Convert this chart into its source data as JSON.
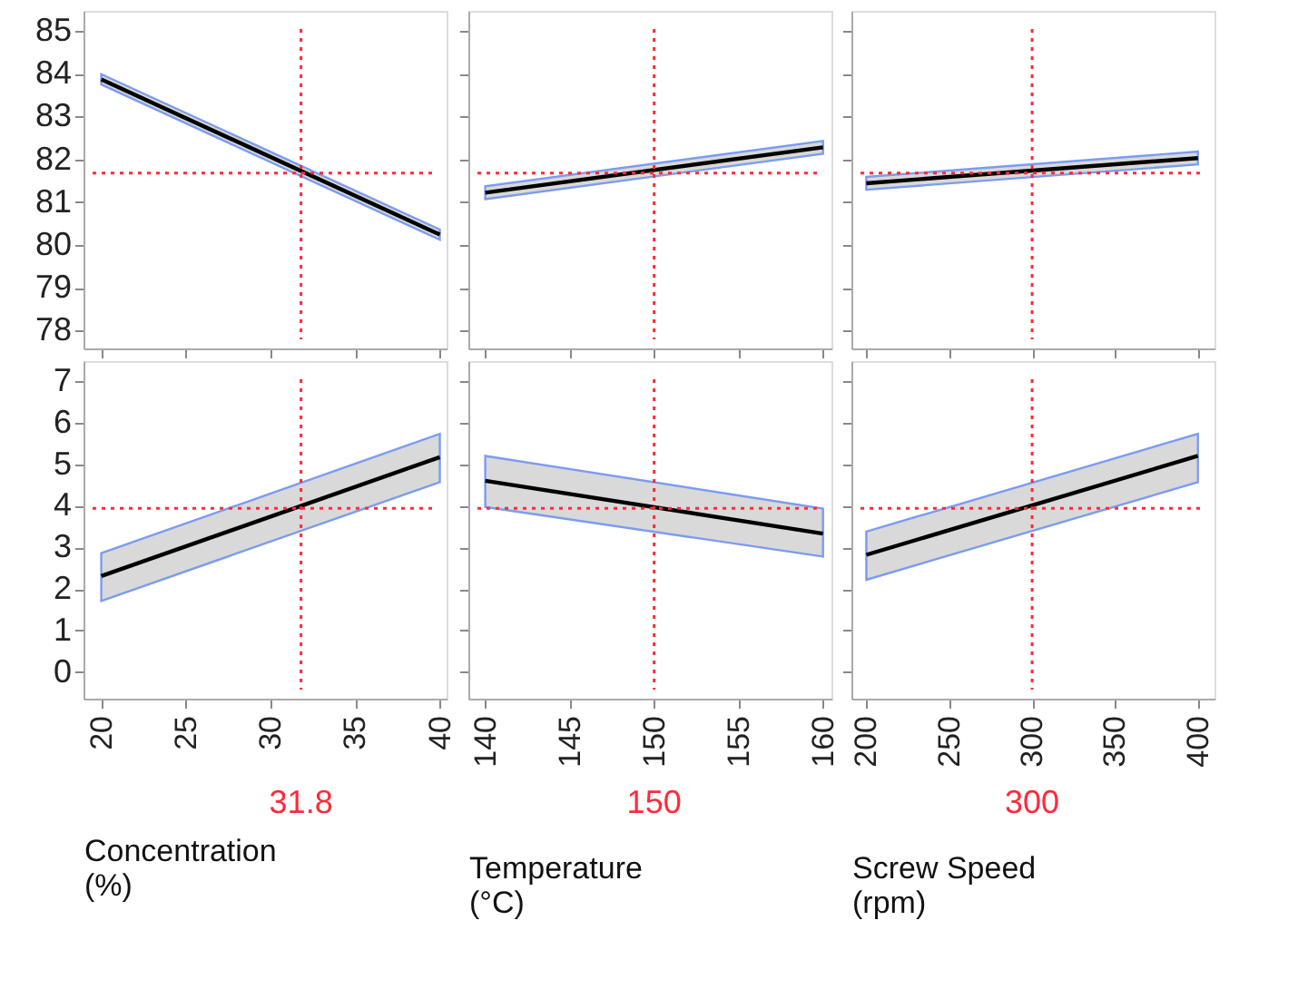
{
  "chart_data": [
    {
      "type": "line",
      "x": [
        20,
        40
      ],
      "xlim": [
        18.95,
        40.4
      ],
      "xticks": [
        20,
        25,
        30,
        35,
        40
      ],
      "ylim": [
        77.58,
        85.47
      ],
      "yticks": [
        78,
        79,
        80,
        81,
        82,
        83,
        84,
        85
      ],
      "tick_labels": "y",
      "grid": false,
      "series": [
        {
          "color": "#000000",
          "values": [
            83.87,
            80.24
          ],
          "lower": [
            83.75,
            80.12
          ],
          "upper": [
            83.99,
            80.36
          ]
        }
      ],
      "ref_lines": [
        {
          "axis": "x",
          "value": 31.8,
          "color": "#ff2a3a",
          "line_style": "dotted"
        },
        {
          "axis": "y",
          "value": 81.68,
          "color": "#ff2a3a",
          "line_style": "dotted"
        }
      ]
    },
    {
      "type": "line",
      "x": [
        140,
        160
      ],
      "xlim": [
        139,
        160.5
      ],
      "xticks": [
        140,
        145,
        150,
        155,
        160
      ],
      "ylim": [
        77.58,
        85.47
      ],
      "yticks": [
        78,
        79,
        80,
        81,
        82,
        83,
        84,
        85
      ],
      "tick_labels": false,
      "grid": false,
      "series": [
        {
          "color": "#000000",
          "values": [
            81.22,
            82.28
          ],
          "lower": [
            81.07,
            82.13
          ],
          "upper": [
            81.37,
            82.43
          ]
        }
      ],
      "ref_lines": [
        {
          "axis": "x",
          "value": 150,
          "color": "#ff2a3a",
          "line_style": "dotted"
        },
        {
          "axis": "y",
          "value": 81.68,
          "color": "#ff2a3a",
          "line_style": "dotted"
        }
      ]
    },
    {
      "type": "line",
      "x": [
        200,
        400
      ],
      "xlim": [
        191,
        410
      ],
      "xticks": [
        200,
        250,
        300,
        350,
        400
      ],
      "ylim": [
        77.58,
        85.47
      ],
      "yticks": [
        78,
        79,
        80,
        81,
        82,
        83,
        84,
        85
      ],
      "tick_labels": false,
      "grid": false,
      "series": [
        {
          "color": "#000000",
          "values": [
            81.44,
            82.03
          ],
          "lower": [
            81.29,
            81.88
          ],
          "upper": [
            81.59,
            82.18
          ]
        }
      ],
      "ref_lines": [
        {
          "axis": "x",
          "value": 300,
          "color": "#ff2a3a",
          "line_style": "dotted"
        },
        {
          "axis": "y",
          "value": 81.68,
          "color": "#ff2a3a",
          "line_style": "dotted"
        }
      ]
    },
    {
      "type": "line",
      "x": [
        20,
        40
      ],
      "xlim": [
        18.95,
        40.4
      ],
      "xticks": [
        20,
        25,
        30,
        35,
        40
      ],
      "ylim": [
        -0.64,
        7.48
      ],
      "yticks": [
        0,
        1,
        2,
        3,
        4,
        5,
        6,
        7
      ],
      "xlabel": "Concentration (%)",
      "grid": false,
      "series": [
        {
          "color": "#000000",
          "values": [
            2.31,
            5.17
          ],
          "lower": [
            1.71,
            4.57
          ],
          "upper": [
            2.86,
            5.73
          ]
        }
      ],
      "ref_lines": [
        {
          "axis": "x",
          "value": 31.8,
          "label": "31.8",
          "color": "#ff2a3a",
          "line_style": "dotted"
        },
        {
          "axis": "y",
          "value": 3.94,
          "color": "#ff2a3a",
          "line_style": "dotted"
        }
      ]
    },
    {
      "type": "line",
      "x": [
        140,
        160
      ],
      "xlim": [
        139,
        160.5
      ],
      "xticks": [
        140,
        145,
        150,
        155,
        160
      ],
      "ylim": [
        -0.64,
        7.48
      ],
      "yticks": [
        0,
        1,
        2,
        3,
        4,
        5,
        6,
        7
      ],
      "xlabel": "Temperature (°C)",
      "tick_labels": "x",
      "grid": false,
      "series": [
        {
          "color": "#000000",
          "values": [
            4.6,
            3.33
          ],
          "lower": [
            3.97,
            2.78
          ],
          "upper": [
            5.2,
            3.93
          ]
        }
      ],
      "ref_lines": [
        {
          "axis": "x",
          "value": 150,
          "label": "150",
          "color": "#ff2a3a",
          "line_style": "dotted"
        },
        {
          "axis": "y",
          "value": 3.94,
          "color": "#ff2a3a",
          "line_style": "dotted"
        }
      ]
    },
    {
      "type": "line",
      "x": [
        200,
        400
      ],
      "xlim": [
        191,
        410
      ],
      "xticks": [
        200,
        250,
        300,
        350,
        400
      ],
      "ylim": [
        -0.64,
        7.48
      ],
      "yticks": [
        0,
        1,
        2,
        3,
        4,
        5,
        6,
        7
      ],
      "xlabel": "Screw Speed (rpm)",
      "tick_labels": "x",
      "grid": false,
      "series": [
        {
          "color": "#000000",
          "values": [
            2.82,
            5.2
          ],
          "lower": [
            2.22,
            4.57
          ],
          "upper": [
            3.38,
            5.73
          ]
        }
      ],
      "ref_lines": [
        {
          "axis": "x",
          "value": 300,
          "label": "300",
          "color": "#ff2a3a",
          "line_style": "dotted"
        },
        {
          "axis": "y",
          "value": 3.94,
          "color": "#ff2a3a",
          "line_style": "dotted"
        }
      ]
    }
  ]
}
